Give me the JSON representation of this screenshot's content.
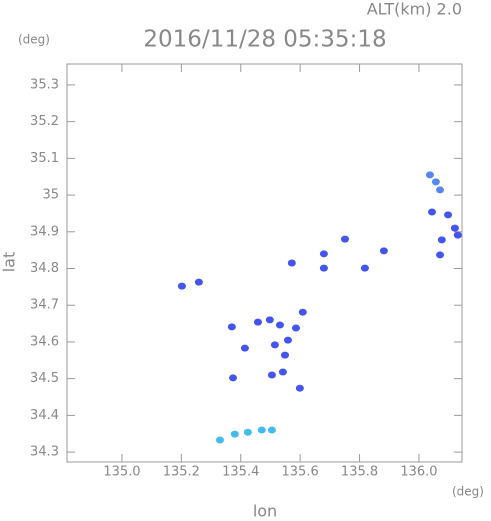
{
  "chart_data": {
    "type": "scatter",
    "title": "2016/11/28 05:35:18",
    "subtitle": "ALT(km) 2.0",
    "x_label": "lon",
    "y_label": "lat",
    "x_unit": "(deg)",
    "y_unit": "(deg)",
    "xlim": [
      134.815,
      136.145
    ],
    "ylim": [
      34.273,
      35.357
    ],
    "xticks": [
      {
        "value": 135,
        "label": "135.0"
      },
      135.2,
      135.4,
      135.6,
      135.8,
      {
        "value": 136,
        "label": "136.0"
      }
    ],
    "yticks": [
      34.3,
      34.4,
      34.5,
      34.6,
      34.7,
      34.8,
      34.9,
      35.0,
      35.1,
      35.2,
      35.3
    ],
    "series": [
      {
        "color": "#4455ee",
        "x": [
          135.202,
          135.259,
          135.37,
          135.414,
          135.374,
          135.458,
          135.498,
          135.532,
          135.515,
          135.549,
          135.542,
          135.505,
          135.559,
          135.586,
          135.609,
          135.599,
          135.572,
          135.68,
          135.68,
          135.751,
          135.818,
          135.882,
          136.044,
          136.098,
          136.121,
          136.077,
          136.071,
          136.131
        ],
        "y": [
          34.752,
          34.763,
          34.641,
          34.583,
          34.502,
          34.654,
          34.66,
          34.646,
          34.592,
          34.564,
          34.518,
          34.51,
          34.605,
          34.638,
          34.681,
          34.474,
          34.815,
          34.84,
          34.801,
          34.88,
          34.801,
          34.848,
          34.954,
          34.946,
          34.91,
          34.878,
          34.837,
          34.891
        ]
      },
      {
        "color": "#5588ee",
        "x": [
          136.037,
          136.057,
          136.071
        ],
        "y": [
          35.055,
          35.036,
          35.014
        ]
      },
      {
        "color": "#44bbee",
        "x": [
          135.33,
          135.38,
          135.424,
          135.471,
          135.505
        ],
        "y": [
          34.333,
          34.349,
          34.354,
          34.36,
          34.36
        ]
      }
    ]
  }
}
